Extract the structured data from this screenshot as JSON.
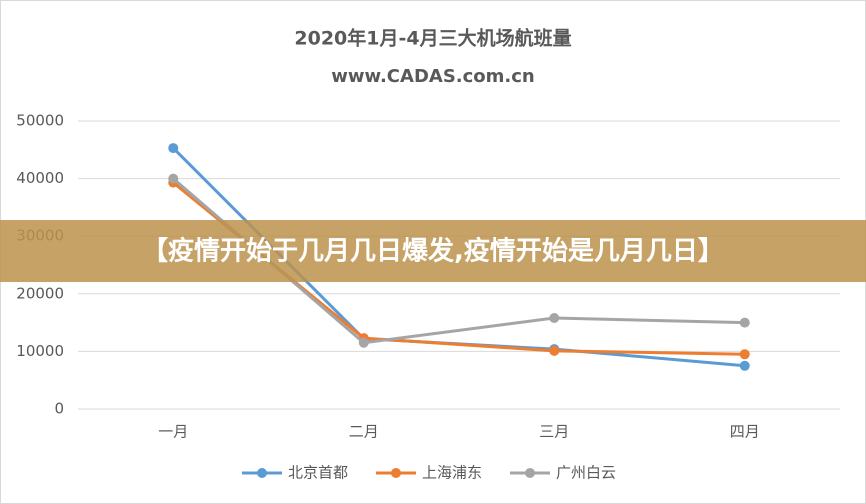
{
  "chart_data": {
    "type": "line",
    "title": "2020年1月-4月三大机场航班量",
    "subtitle": "www.CADAS.com.cn",
    "annotation": "【疫情开始于几月几日爆发,疫情开始是几月几日】",
    "categories": [
      "一月",
      "二月",
      "三月",
      "四月"
    ],
    "series": [
      {
        "name": "北京首都",
        "color": "#5b9bd5",
        "values": [
          45300,
          12200,
          10400,
          7500
        ]
      },
      {
        "name": "上海浦东",
        "color": "#ed7d31",
        "values": [
          39300,
          12300,
          10100,
          9500
        ]
      },
      {
        "name": "广州白云",
        "color": "#a5a5a5",
        "values": [
          40000,
          11500,
          15800,
          15000
        ]
      }
    ],
    "ylim": [
      0,
      50000
    ],
    "yticks": [
      0,
      10000,
      20000,
      30000,
      40000,
      50000
    ],
    "grid": true
  }
}
